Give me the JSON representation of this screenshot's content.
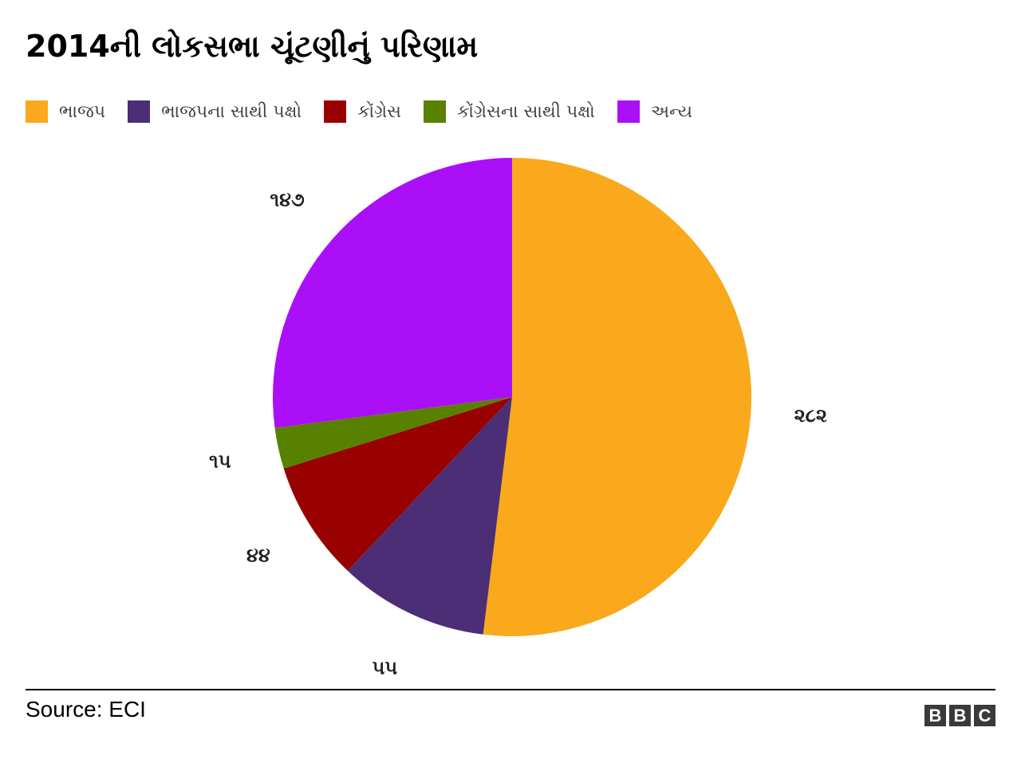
{
  "title": "2014ની લોકસભા ચૂંટણીનું પરિણામ",
  "colors": {
    "bjp": "#F9A91B",
    "bjp_allies": "#4B2E76",
    "congress": "#990000",
    "congress_allies": "#588100",
    "others": "#AA0FF7"
  },
  "legend": [
    {
      "label": "ભાજપ",
      "color": "#F9A91B"
    },
    {
      "label": "ભાજપના સાથી પક્ષો",
      "color": "#4B2E76"
    },
    {
      "label": "કોંગ્રેસ",
      "color": "#990000"
    },
    {
      "label": "કોંગ્રેસના સાથી પક્ષો",
      "color": "#588100"
    },
    {
      "label": "અન્ય",
      "color": "#AA0FF7"
    }
  ],
  "chart_data": {
    "type": "pie",
    "title": "2014ની લોકસભા ચૂંટણીનું પરિણામ",
    "categories": [
      "ભાજપ",
      "ભાજપના સાથી પક્ષો",
      "કોંગ્રેસ",
      "કોંગ્રેસના સાથી પક્ષો",
      "અન્ય"
    ],
    "values": [
      282,
      55,
      44,
      15,
      147
    ],
    "value_labels": [
      "૨૮૨",
      "૫૫",
      "૪૪",
      "૧૫",
      "૧૪૭"
    ],
    "colors": [
      "#F9A91B",
      "#4B2E76",
      "#990000",
      "#588100",
      "#AA0FF7"
    ],
    "legend_position": "top",
    "start": "top, clockwise"
  },
  "footer": {
    "source": "Source: ECI",
    "logo_letters": [
      "B",
      "B",
      "C"
    ]
  }
}
